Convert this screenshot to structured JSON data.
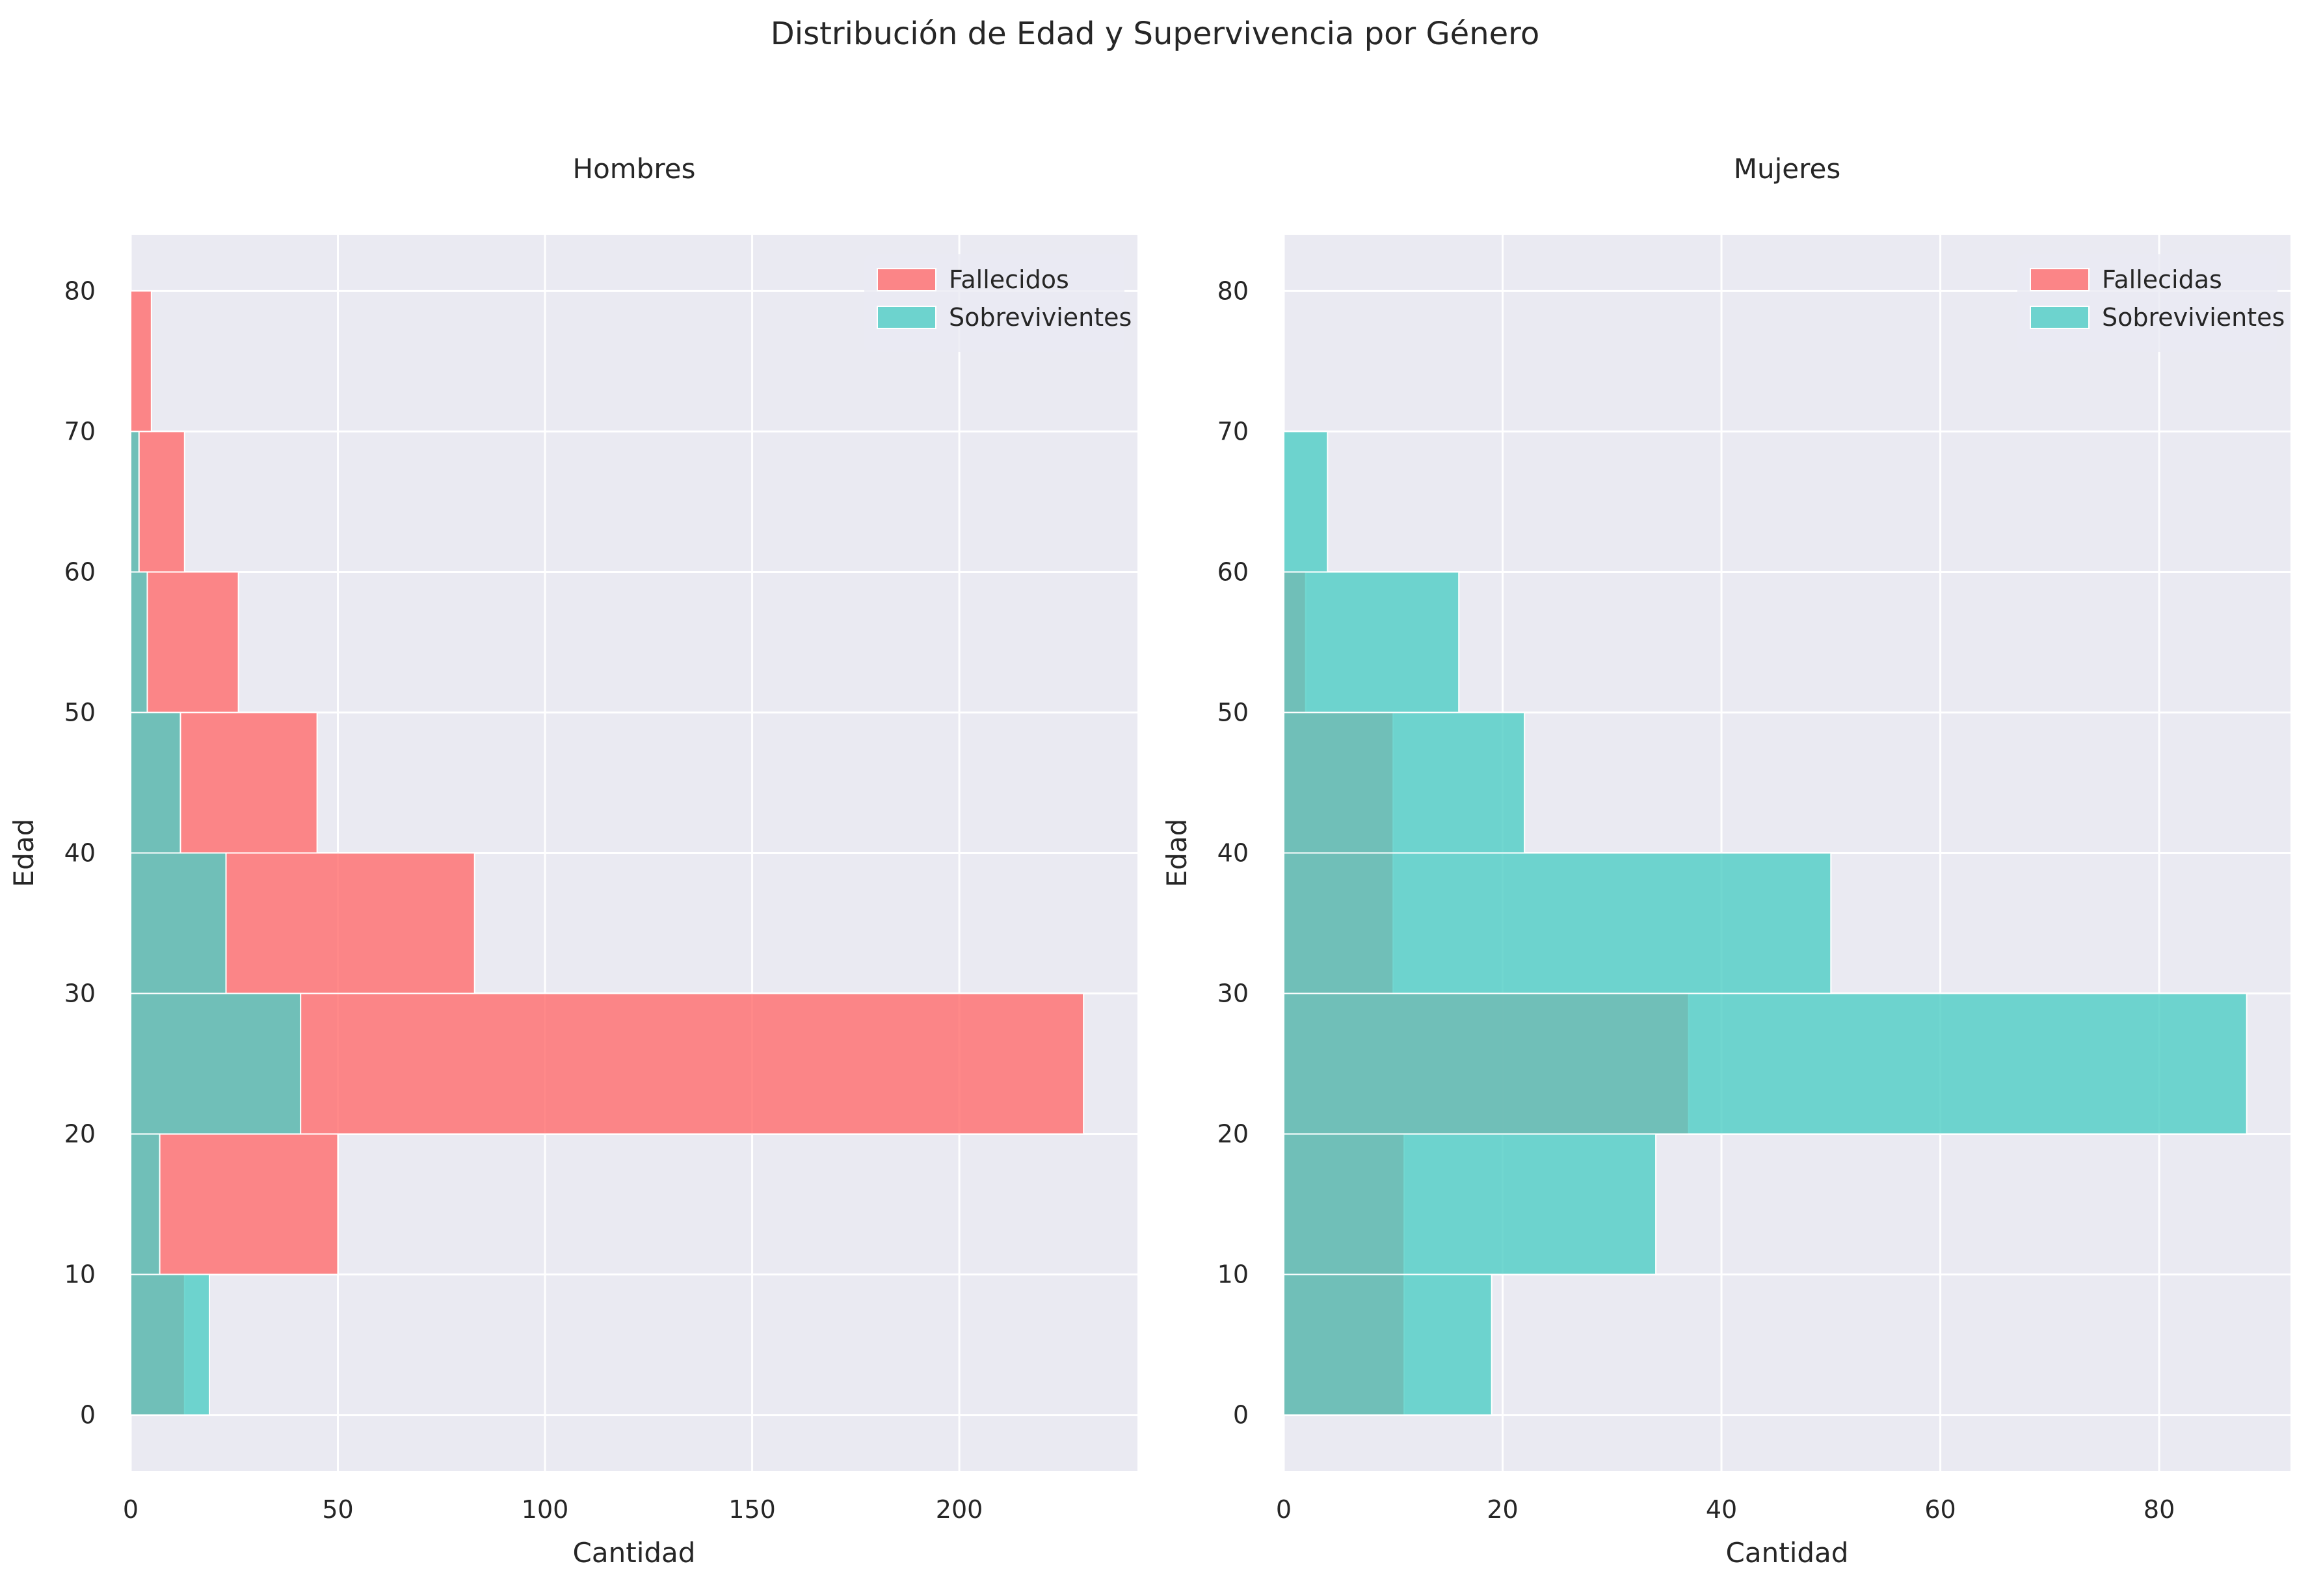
{
  "figure_title": "Distribución de Edad y Supervivencia por Género",
  "colors": {
    "died": "#ff6b6b",
    "survived": "#4ecdc4",
    "background": "#eaeaf2",
    "grid": "#ffffff"
  },
  "chart_data": [
    {
      "type": "bar",
      "orientation": "horizontal",
      "title": "Hombres",
      "xlabel": "Cantidad",
      "ylabel": "Edad",
      "xlim": [
        0,
        243
      ],
      "ylim": [
        -4,
        84
      ],
      "xticks": [
        0,
        50,
        100,
        150,
        200
      ],
      "yticks": [
        0,
        10,
        20,
        30,
        40,
        50,
        60,
        70,
        80
      ],
      "bin_edges": [
        0,
        10,
        20,
        30,
        40,
        50,
        60,
        70,
        80
      ],
      "legend_position": "upper right",
      "grid": true,
      "series": [
        {
          "name": "Fallecidos",
          "color": "#ff6b6b",
          "values": [
            13,
            50,
            230,
            83,
            45,
            26,
            13,
            5
          ]
        },
        {
          "name": "Sobrevivientes",
          "color": "#4ecdc4",
          "values": [
            19,
            7,
            41,
            23,
            12,
            4,
            2,
            0
          ]
        }
      ]
    },
    {
      "type": "bar",
      "orientation": "horizontal",
      "title": "Mujeres",
      "xlabel": "Cantidad",
      "ylabel": "Edad",
      "xlim": [
        0,
        92
      ],
      "ylim": [
        -4,
        84
      ],
      "xticks": [
        0,
        20,
        40,
        60,
        80
      ],
      "yticks": [
        0,
        10,
        20,
        30,
        40,
        50,
        60,
        70,
        80
      ],
      "bin_edges": [
        0,
        10,
        20,
        30,
        40,
        50,
        60,
        70,
        80
      ],
      "legend_position": "upper right",
      "grid": true,
      "series": [
        {
          "name": "Fallecidas",
          "color": "#ff6b6b",
          "values": [
            11,
            11,
            37,
            10,
            10,
            2,
            0,
            0
          ]
        },
        {
          "name": "Sobrevivientes",
          "color": "#4ecdc4",
          "values": [
            19,
            34,
            88,
            50,
            22,
            16,
            4,
            0
          ]
        }
      ]
    }
  ]
}
